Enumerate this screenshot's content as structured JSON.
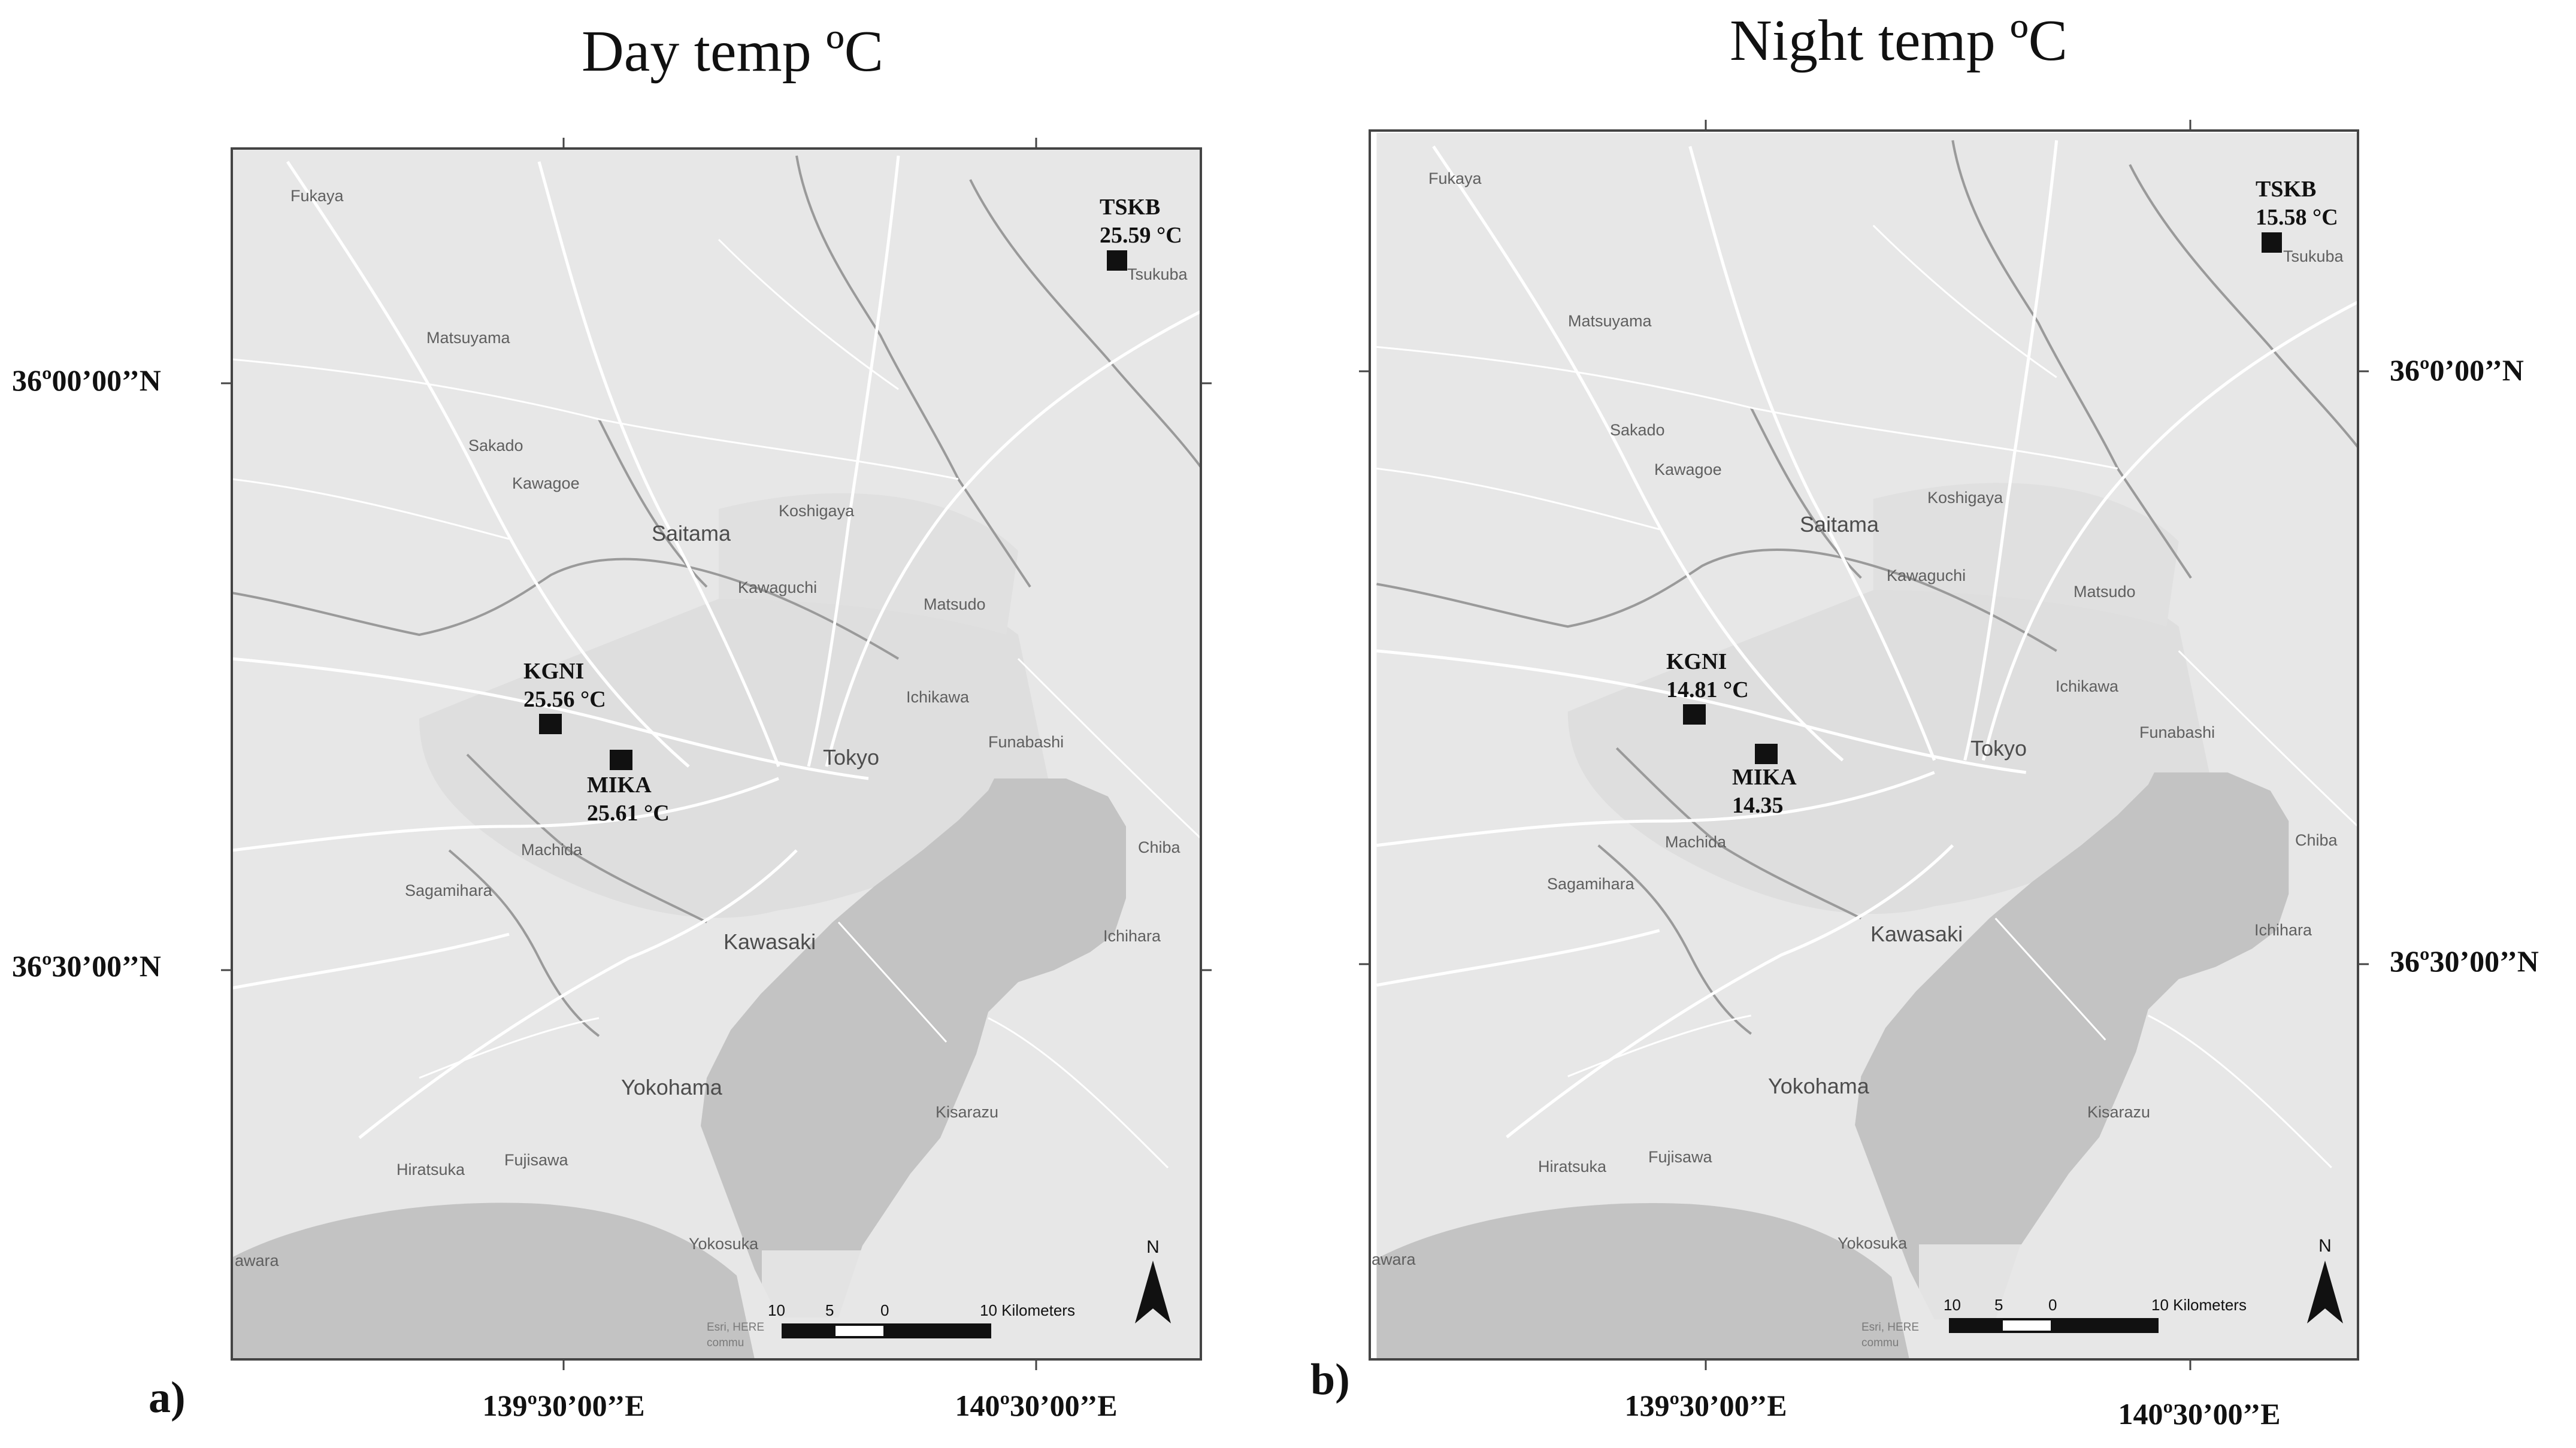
{
  "panels": [
    {
      "id": "a",
      "panel_label": "a)",
      "title": "Day temp ºC",
      "lat_labels": [
        "36º00’00’’N",
        "36º30’00’’N"
      ],
      "lon_labels": [
        "139º30’00’’E",
        "140º30’00’’E"
      ],
      "stations": [
        {
          "name": "TSKB",
          "value": "25.59 °C"
        },
        {
          "name": "KGNI",
          "value": "25.56 °C"
        },
        {
          "name": "MIKA",
          "value": "25.61 °C"
        }
      ]
    },
    {
      "id": "b",
      "panel_label": "b)",
      "title": "Night temp ºC",
      "lat_labels": [
        "36º0’00’’N",
        "36º30’00’’N"
      ],
      "lon_labels": [
        "139º30’00’’E",
        "140º30’00’’E"
      ],
      "stations": [
        {
          "name": "TSKB",
          "value": "15.58 °C"
        },
        {
          "name": "KGNI",
          "value": "14.81 °C"
        },
        {
          "name": "MIKA",
          "value": "14.35"
        }
      ]
    }
  ],
  "places": {
    "fukaya": "Fukaya",
    "matsuyama": "Matsuyama",
    "sakado": "Sakado",
    "kawagoe": "Kawagoe",
    "saitama": "Saitama",
    "koshigaya": "Koshigaya",
    "kawaguchi": "Kawaguchi",
    "matsudo": "Matsudo",
    "ichikawa": "Ichikawa",
    "funabashi": "Funabashi",
    "tokyo": "Tokyo",
    "machida": "Machida",
    "sagamihara": "Sagamihara",
    "kawasaki": "Kawasaki",
    "chiba": "Chiba",
    "ichihara": "Ichihara",
    "yokohama": "Yokohama",
    "kisarazu": "Kisarazu",
    "hiratsuka": "Hiratsuka",
    "fujisawa": "Fujisawa",
    "yokosuka": "Yokosuka",
    "odawara": "awara",
    "tsukuba": "Tsukuba"
  },
  "scale_bar": {
    "ticks": [
      "10",
      "5",
      "0",
      "10 Kilometers"
    ]
  },
  "north_arrow": {
    "label": "N"
  },
  "credits": [
    "Esri, HERE",
    "commu"
  ],
  "colors": {
    "land": "#e7e7e7",
    "water": "#c3c3c3",
    "urban": "#dcdcdc",
    "roads": "#ffffff",
    "rivers": "#9a9a9a",
    "marker": "#111111"
  }
}
